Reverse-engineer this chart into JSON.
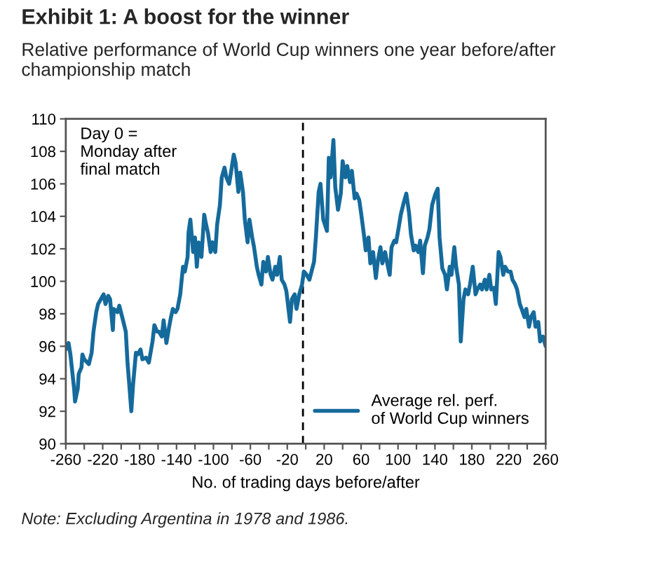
{
  "chart_data": {
    "type": "line",
    "title": "Exhibit 1: A boost for the winner",
    "subtitle": "Relative performance of World Cup winners one year before/after championship match",
    "xlabel": "No. of trading days before/after",
    "annotations": [
      "Day 0 = Monday after final match",
      "Note: Excluding Argentina in 1978 and 1986."
    ],
    "x": [
      -260,
      -257,
      -255,
      -251,
      -250,
      -247,
      -246,
      -243,
      -242,
      -240,
      -235,
      -232,
      -230,
      -227,
      -225,
      -222,
      -219,
      -217,
      -214,
      -212,
      -209,
      -208,
      -204,
      -202,
      -198,
      -195,
      -193,
      -191,
      -189,
      -187,
      -184,
      -182,
      -179,
      -177,
      -173,
      -170,
      -166,
      -164,
      -161,
      -159,
      -156,
      -154,
      -151,
      -148,
      -146,
      -144,
      -141,
      -139,
      -136,
      -133,
      -131,
      -128,
      -127,
      -125,
      -122,
      -120,
      -118,
      -116,
      -113,
      -110,
      -108,
      -106,
      -103,
      -101,
      -98,
      -96,
      -93,
      -91,
      -88,
      -86,
      -83,
      -81,
      -78,
      -76,
      -73,
      -71,
      -68,
      -66,
      -63,
      -61,
      -58,
      -56,
      -53,
      -51,
      -48,
      -46,
      -43,
      -41,
      -38,
      -36,
      -33,
      -31,
      -28,
      -26,
      -23,
      -21,
      -17,
      -15,
      -12,
      -10,
      -7,
      -4,
      -2,
      1,
      4,
      9,
      11,
      14,
      16,
      19,
      23,
      25,
      27,
      30,
      32,
      35,
      38,
      40,
      43,
      45,
      48,
      50,
      53,
      55,
      58,
      60,
      63,
      65,
      68,
      70,
      73,
      76,
      78,
      81,
      83,
      86,
      88,
      91,
      93,
      96,
      98,
      101,
      103,
      106,
      109,
      112,
      114,
      117,
      119,
      122,
      124,
      127,
      129,
      132,
      134,
      137,
      140,
      143,
      145,
      148,
      151,
      153,
      156,
      158,
      161,
      163,
      166,
      168,
      171,
      173,
      176,
      178,
      181,
      184,
      186,
      189,
      191,
      194,
      196,
      199,
      201,
      204,
      206,
      209,
      211,
      214,
      216,
      219,
      222,
      224,
      227,
      229,
      232,
      234,
      237,
      239,
      242,
      244,
      247,
      249,
      252,
      254,
      257,
      260
    ],
    "series": [
      {
        "name": "Average rel. perf. of World Cup winners",
        "color": "#156a9c",
        "values": [
          95.8,
          96.2,
          95.5,
          93.4,
          92.6,
          93.4,
          94.3,
          94.7,
          95.5,
          95.2,
          94.9,
          95.6,
          96.9,
          98.1,
          98.6,
          98.9,
          99.2,
          98.6,
          99.1,
          98.9,
          97.0,
          98.3,
          98.1,
          98.5,
          97.6,
          96.9,
          94.9,
          93.5,
          92.0,
          93.7,
          95.6,
          95.5,
          95.8,
          95.2,
          95.3,
          95.0,
          96.3,
          97.3,
          96.9,
          96.9,
          96.6,
          97.6,
          96.2,
          97.2,
          97.8,
          98.3,
          98.1,
          98.3,
          99.2,
          100.9,
          100.6,
          101.5,
          103.0,
          103.8,
          101.8,
          102.7,
          100.9,
          102.4,
          101.5,
          104.1,
          103.5,
          103.0,
          101.8,
          102.4,
          101.8,
          103.5,
          104.7,
          106.4,
          107.0,
          106.4,
          106.0,
          106.7,
          107.8,
          107.3,
          105.5,
          106.7,
          105.5,
          103.8,
          102.4,
          103.8,
          102.7,
          102.1,
          100.9,
          100.4,
          99.8,
          101.2,
          100.6,
          101.5,
          100.4,
          100.1,
          100.9,
          100.4,
          101.5,
          100.1,
          99.8,
          99.4,
          97.5,
          98.9,
          99.2,
          98.3,
          99.2,
          99.8,
          100.6,
          100.4,
          100.1,
          101.2,
          102.7,
          105.5,
          106.0,
          103.8,
          103.1,
          107.6,
          106.4,
          108.7,
          105.8,
          104.4,
          105.4,
          107.4,
          106.4,
          107.1,
          106.1,
          106.8,
          105.1,
          105.4,
          105.0,
          104.2,
          102.9,
          101.9,
          102.7,
          101.1,
          101.8,
          100.2,
          101.2,
          102.1,
          101.1,
          101.8,
          101.2,
          100.4,
          102.1,
          102.5,
          102.4,
          103.4,
          104.1,
          104.8,
          105.4,
          104.2,
          102.9,
          101.9,
          102.2,
          101.8,
          102.5,
          100.5,
          102.2,
          102.7,
          103.2,
          104.7,
          105.3,
          105.7,
          102.7,
          100.8,
          100.4,
          99.5,
          100.9,
          100.4,
          102.1,
          100.9,
          99.8,
          96.3,
          98.9,
          99.5,
          99.2,
          99.8,
          100.9,
          99.2,
          99.5,
          99.8,
          99.5,
          100.1,
          99.5,
          100.4,
          99.5,
          99.6,
          98.6,
          101.8,
          101.5,
          100.4,
          100.9,
          100.6,
          100.6,
          100.1,
          99.8,
          99.5,
          98.6,
          98.3,
          97.8,
          98.3,
          97.2,
          97.8,
          98.1,
          97.2,
          97.5,
          96.3,
          96.6,
          96.0
        ]
      }
    ],
    "xlim": [
      -260,
      260
    ],
    "xticks": [
      -260,
      {
        "value": -240,
        "label": null
      },
      -220,
      {
        "value": -200,
        "label": null
      },
      -180,
      {
        "value": -160,
        "label": null
      },
      -140,
      {
        "value": -120,
        "label": null
      },
      -100,
      {
        "value": -80,
        "label": null
      },
      -60,
      {
        "value": -40,
        "label": null
      },
      -20,
      {
        "value": 0,
        "label": null
      },
      20,
      {
        "value": 40,
        "label": null
      },
      60,
      {
        "value": 80,
        "label": null
      },
      100,
      {
        "value": 120,
        "label": null
      },
      140,
      {
        "value": 160,
        "label": null
      },
      180,
      {
        "value": 200,
        "label": null
      },
      220,
      {
        "value": 240,
        "label": null
      },
      260
    ],
    "ylim": [
      90,
      110
    ],
    "yticks": [
      90,
      92,
      94,
      96,
      98,
      100,
      102,
      104,
      106,
      108,
      110
    ],
    "ref_lines": [
      {
        "axis": "x",
        "value": -3,
        "color": "#000000",
        "line_style": "dashed"
      }
    ],
    "legend": "bottom right",
    "grid": false
  }
}
